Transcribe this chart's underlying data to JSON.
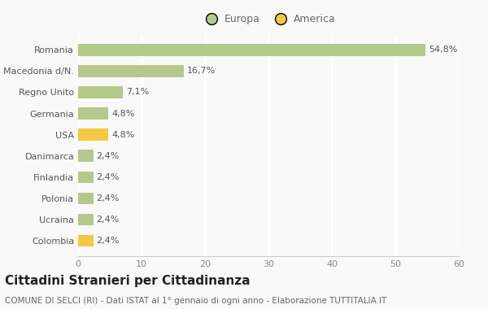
{
  "categories": [
    "Romania",
    "Macedonia d/N.",
    "Regno Unito",
    "Germania",
    "USA",
    "Danimarca",
    "Finlandia",
    "Polonia",
    "Ucraina",
    "Colombia"
  ],
  "values": [
    54.8,
    16.7,
    7.1,
    4.8,
    4.8,
    2.4,
    2.4,
    2.4,
    2.4,
    2.4
  ],
  "labels": [
    "54,8%",
    "16,7%",
    "7,1%",
    "4,8%",
    "4,8%",
    "2,4%",
    "2,4%",
    "2,4%",
    "2,4%",
    "2,4%"
  ],
  "colors": [
    "#b5c98a",
    "#b5c98a",
    "#b5c98a",
    "#b5c98a",
    "#f5c842",
    "#b5c98a",
    "#b5c98a",
    "#b5c98a",
    "#b5c98a",
    "#f5c842"
  ],
  "legend_europa_color": "#b5c98a",
  "legend_america_color": "#f5c842",
  "xlim": [
    0,
    60
  ],
  "xticks": [
    0,
    10,
    20,
    30,
    40,
    50,
    60
  ],
  "title": "Cittadini Stranieri per Cittadinanza",
  "subtitle": "COMUNE DI SELCI (RI) - Dati ISTAT al 1° gennaio di ogni anno - Elaborazione TUTTITALIA.IT",
  "bg_color": "#f9f9f9",
  "grid_color": "#ffffff",
  "bar_height": 0.55,
  "title_fontsize": 11,
  "subtitle_fontsize": 7.5,
  "label_fontsize": 8,
  "tick_fontsize": 8,
  "legend_fontsize": 9
}
